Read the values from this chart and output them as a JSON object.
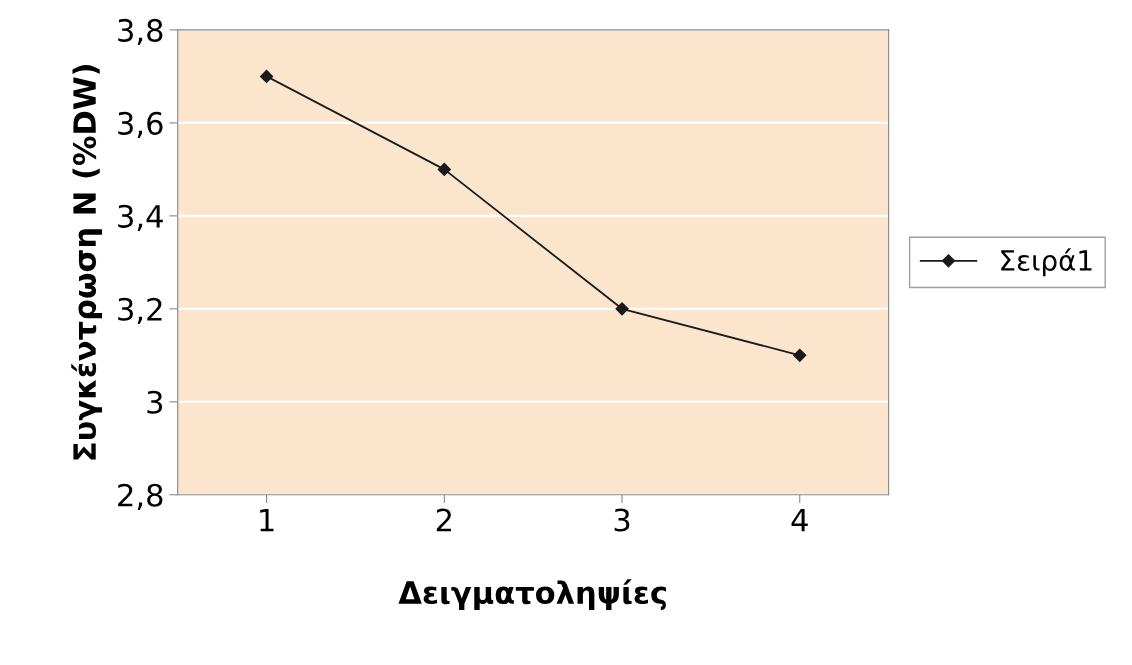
{
  "chart_data": {
    "type": "line",
    "xlabel": "Δειγματοληψίες",
    "ylabel": "Συγκέντρωση N (%DW)",
    "categories": [
      "1",
      "2",
      "3",
      "4"
    ],
    "series": [
      {
        "name": "Σειρά1",
        "color": "#1a1a1a",
        "values": [
          3.7,
          3.5,
          3.2,
          3.1
        ]
      }
    ],
    "ylim": [
      2.8,
      3.8
    ],
    "yticks": [
      {
        "value": 2.8,
        "label": "2,8"
      },
      {
        "value": 3.0,
        "label": "3"
      },
      {
        "value": 3.2,
        "label": "3,2"
      },
      {
        "value": 3.4,
        "label": "3,4"
      },
      {
        "value": 3.6,
        "label": "3,6"
      },
      {
        "value": 3.8,
        "label": "3,8"
      }
    ],
    "grid": "y",
    "legend": "right",
    "marker": "diamond",
    "line_style": "solid"
  }
}
